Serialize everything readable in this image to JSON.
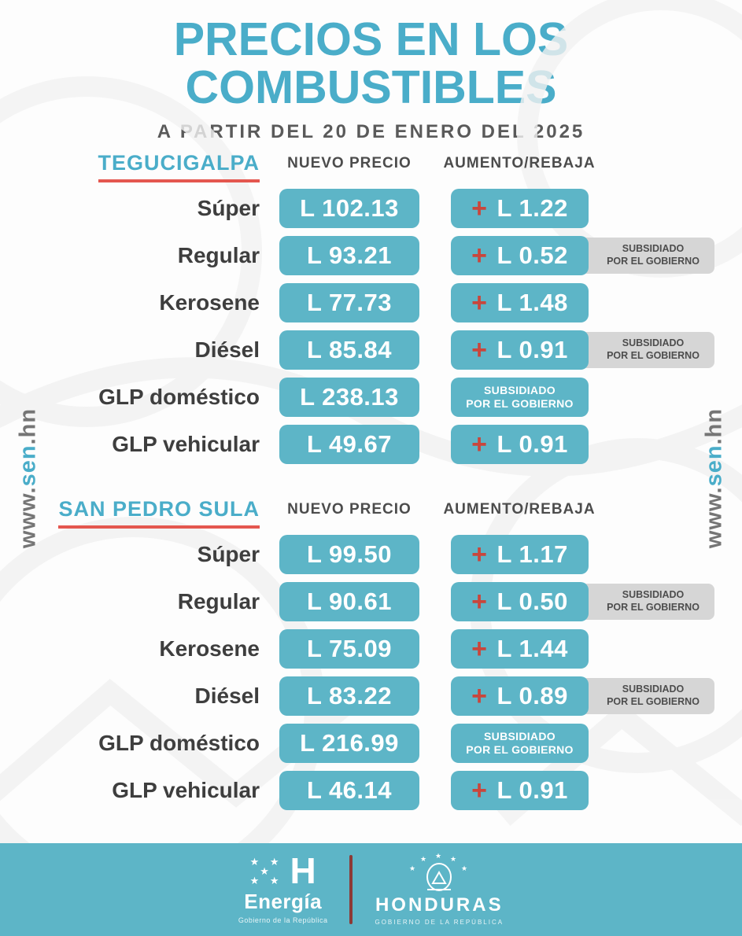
{
  "title": {
    "line1": "PRECIOS EN LOS",
    "line2": "COMBUSTIBLES",
    "subtitle": "A PARTIR DEL 20 DE ENERO DEL 2025"
  },
  "columns": {
    "price": "NUEVO PRECIO",
    "change": "AUMENTO/REBAJA"
  },
  "website": {
    "prefix": "www.",
    "domain": "sen",
    "suffix": ".hn"
  },
  "subsidy_label": {
    "line1": "SUBSIDIADO",
    "line2": "POR EL GOBIERNO"
  },
  "sections": [
    {
      "city": "TEGUCIGALPA",
      "rows": [
        {
          "fuel": "Súper",
          "price": "L 102.13",
          "sign": "+",
          "change": "L 1.22",
          "badge": false
        },
        {
          "fuel": "Regular",
          "price": "L 93.21",
          "sign": "+",
          "change": "L 0.52",
          "badge": true
        },
        {
          "fuel": "Kerosene",
          "price": "L 77.73",
          "sign": "+",
          "change": "L 1.48",
          "badge": false
        },
        {
          "fuel": "Diésel",
          "price": "L 85.84",
          "sign": "+",
          "change": "L 0.91",
          "badge": true
        },
        {
          "fuel": "GLP doméstico",
          "price": "L 238.13",
          "sign": null,
          "change": null,
          "badge": false
        },
        {
          "fuel": "GLP vehicular",
          "price": "L 49.67",
          "sign": "+",
          "change": "L 0.91",
          "badge": false
        }
      ]
    },
    {
      "city": "SAN PEDRO SULA",
      "rows": [
        {
          "fuel": "Súper",
          "price": "L 99.50",
          "sign": "+",
          "change": "L 1.17",
          "badge": false
        },
        {
          "fuel": "Regular",
          "price": "L 90.61",
          "sign": "+",
          "change": "L 0.50",
          "badge": true
        },
        {
          "fuel": "Kerosene",
          "price": "L 75.09",
          "sign": "+",
          "change": "L 1.44",
          "badge": false
        },
        {
          "fuel": "Diésel",
          "price": "L 83.22",
          "sign": "+",
          "change": "L 0.89",
          "badge": true
        },
        {
          "fuel": "GLP doméstico",
          "price": "L 216.99",
          "sign": null,
          "change": null,
          "badge": false
        },
        {
          "fuel": "GLP vehicular",
          "price": "L 46.14",
          "sign": "+",
          "change": "L 0.91",
          "badge": false
        }
      ]
    }
  ],
  "footer": {
    "energia": {
      "monogram": "H",
      "name": "Energía",
      "subtitle": "Gobierno de la República"
    },
    "honduras": {
      "name": "HONDURAS",
      "subtitle": "GOBIERNO DE LA REPÚBLICA"
    }
  },
  "colors": {
    "teal_box": "#5db5c7",
    "teal_text": "#4aadc9",
    "red_accent": "#e4574f",
    "red_plus": "#c9463c",
    "badge_gray": "#d6d6d6"
  }
}
